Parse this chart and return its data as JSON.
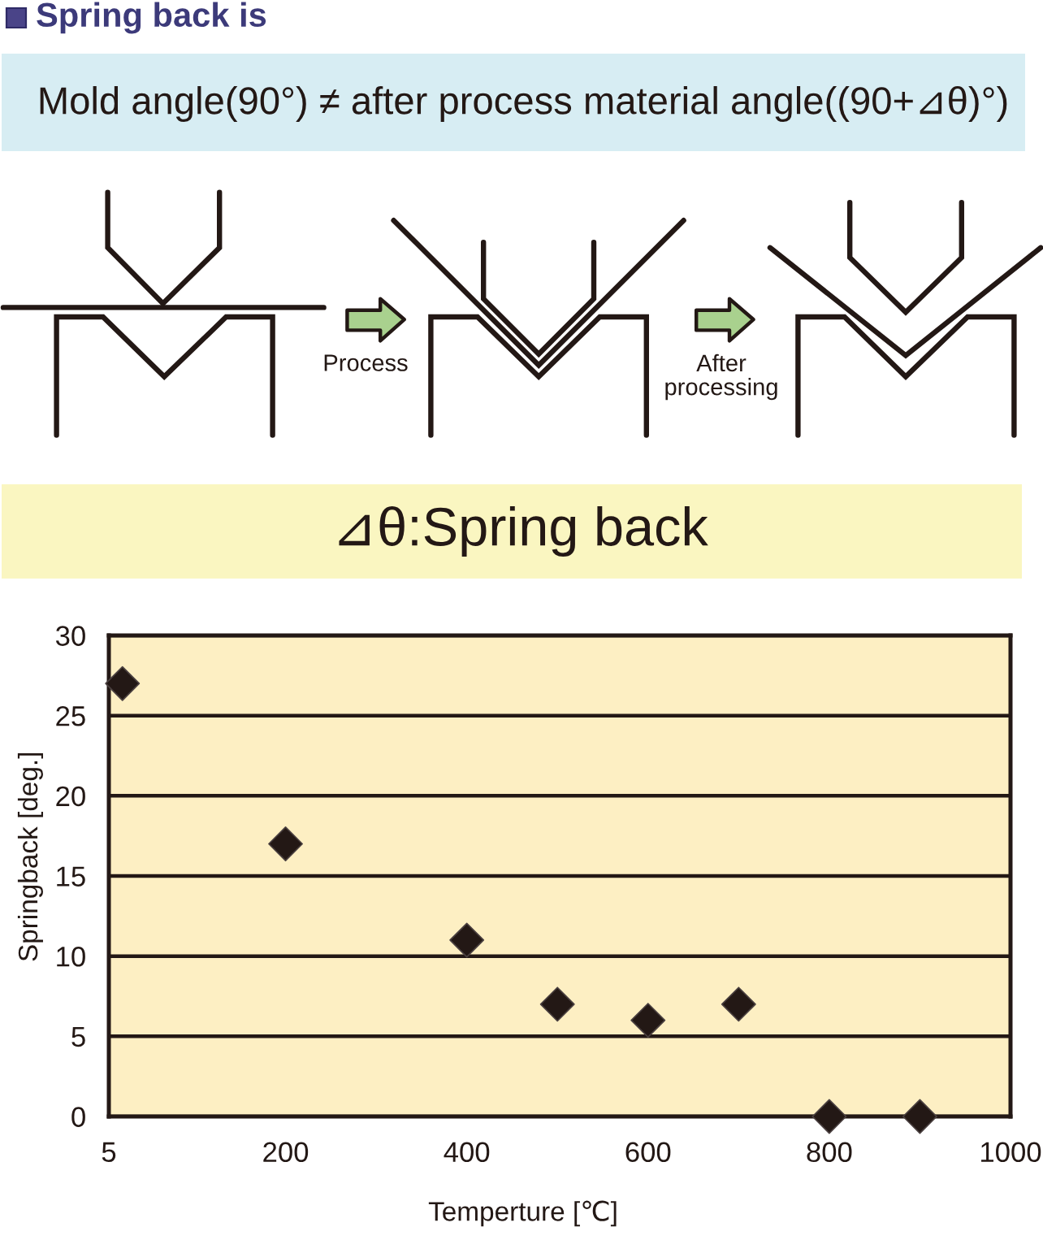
{
  "chart_data": {
    "type": "scatter",
    "title": "Spring back is",
    "subtitle": "Mold angle(90°) ≠ after process material angle((90+⊿θ)°)",
    "annotations": [
      "Process",
      "After\nprocessing",
      "⊿θ:Spring back"
    ],
    "xlabel": "Temperture [℃]",
    "ylabel": "Springback [deg.]",
    "x": [
      20,
      200,
      400,
      500,
      600,
      700,
      800,
      900
    ],
    "values": [
      27,
      17,
      11,
      7,
      6,
      7,
      0,
      0
    ],
    "color": "#231815",
    "marker": "diamond",
    "xlim": [
      5,
      1000
    ],
    "xticks": [
      5,
      200,
      400,
      600,
      800,
      1000
    ],
    "ylim": [
      0,
      30
    ],
    "yticks": [
      0,
      5,
      10,
      15,
      20,
      25,
      30
    ],
    "grid": "y"
  }
}
